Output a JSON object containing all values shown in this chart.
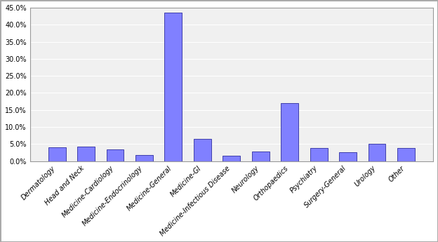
{
  "categories": [
    "Dermatology",
    "Head and Neck",
    "Medicine-Cardiology",
    "Medicine-Endocrinology",
    "Medicine-General",
    "Medicine-GI",
    "Medicine-Infectious Disease",
    "Neurology",
    "Orthopaedics",
    "Psychiatry",
    "Surgery-General",
    "Urology",
    "Other"
  ],
  "values": [
    0.04,
    0.042,
    0.035,
    0.018,
    0.435,
    0.065,
    0.015,
    0.028,
    0.17,
    0.038,
    0.027,
    0.05,
    0.038
  ],
  "bar_color": "#8080ff",
  "bar_edge_color": "#4040aa",
  "background_color": "#ffffff",
  "plot_background_color": "#f0f0f0",
  "ylim": [
    0.0,
    0.45
  ],
  "ytick_step": 0.05,
  "grid_color": "#ffffff",
  "xlabel": "",
  "ylabel": ""
}
